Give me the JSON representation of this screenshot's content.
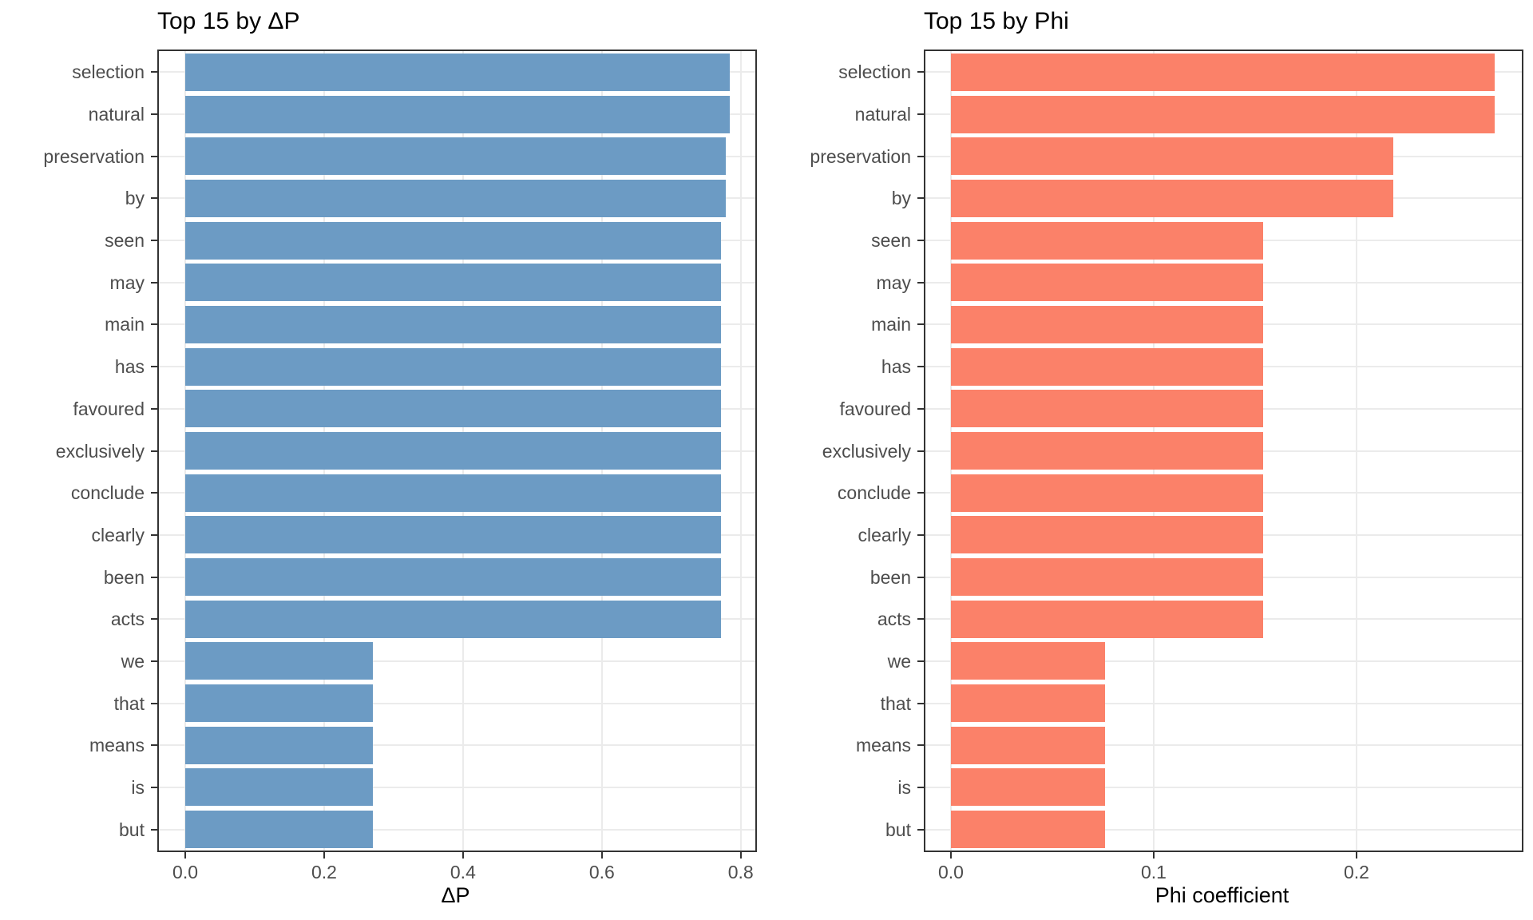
{
  "figure": {
    "background": "#FFFFFF"
  },
  "theme": {
    "panel_border_color": "#333333",
    "gridline_color": "#EBEBEB",
    "tick_mark_color": "#333333",
    "tick_label_color": "#4D4D4D",
    "title_color": "#000000",
    "grid": "major-only",
    "legend": "none"
  },
  "chart_data": [
    {
      "type": "bar",
      "orientation": "horizontal",
      "title": "Top 15 by ΔP",
      "xlabel": "ΔP",
      "ylabel": "",
      "categories": [
        "selection",
        "natural",
        "preservation",
        "by",
        "seen",
        "may",
        "main",
        "has",
        "favoured",
        "exclusively",
        "conclude",
        "clearly",
        "been",
        "acts",
        "we",
        "that",
        "means",
        "is",
        "but"
      ],
      "values": [
        0.784,
        0.784,
        0.778,
        0.778,
        0.772,
        0.772,
        0.772,
        0.772,
        0.772,
        0.772,
        0.772,
        0.772,
        0.772,
        0.772,
        0.27,
        0.27,
        0.27,
        0.27,
        0.27
      ],
      "bar_color": "#6C9BC4",
      "xticks": [
        0.0,
        0.2,
        0.4,
        0.6,
        0.8
      ],
      "xtick_labels": [
        "0.0",
        "0.2",
        "0.4",
        "0.6",
        "0.8"
      ],
      "xlim": [
        -0.038,
        0.821
      ]
    },
    {
      "type": "bar",
      "orientation": "horizontal",
      "title": "Top 15 by Phi",
      "xlabel": "Phi coefficient",
      "ylabel": "",
      "categories": [
        "selection",
        "natural",
        "preservation",
        "by",
        "seen",
        "may",
        "main",
        "has",
        "favoured",
        "exclusively",
        "conclude",
        "clearly",
        "been",
        "acts",
        "we",
        "that",
        "means",
        "is",
        "but"
      ],
      "values": [
        0.268,
        0.268,
        0.218,
        0.218,
        0.154,
        0.154,
        0.154,
        0.154,
        0.154,
        0.154,
        0.154,
        0.154,
        0.154,
        0.154,
        0.076,
        0.076,
        0.076,
        0.076,
        0.076
      ],
      "bar_color": "#FB8169",
      "xticks": [
        0.0,
        0.1,
        0.2
      ],
      "xtick_labels": [
        "0.0",
        "0.1",
        "0.2"
      ],
      "xlim": [
        -0.0126,
        0.2815
      ]
    }
  ]
}
